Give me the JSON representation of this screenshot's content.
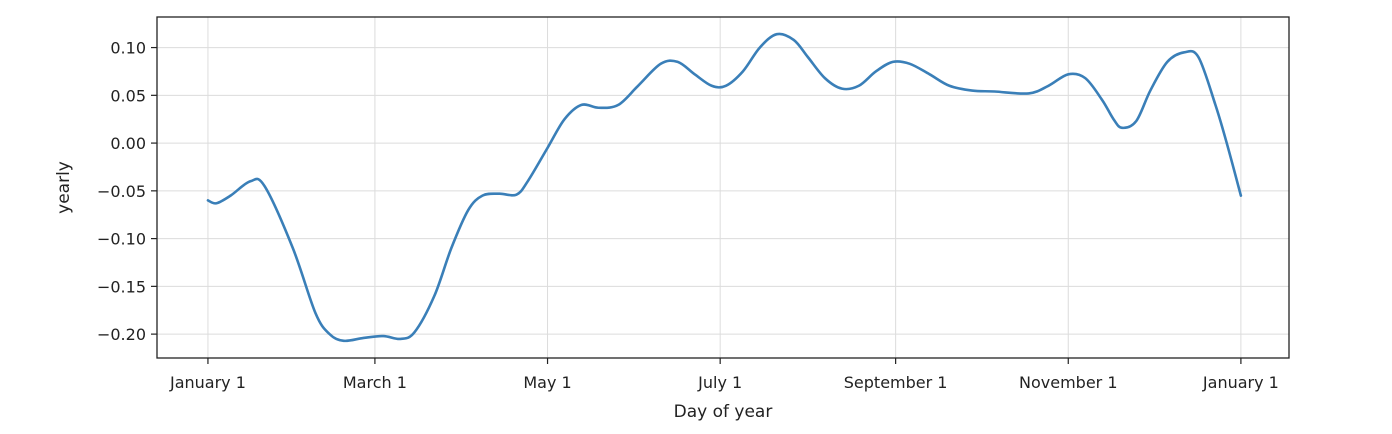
{
  "chart_data": {
    "type": "line",
    "title": "",
    "xlabel": "Day of year",
    "ylabel": "yearly",
    "x_ticks": [
      {
        "day": 0,
        "label": "January 1"
      },
      {
        "day": 59,
        "label": "March 1"
      },
      {
        "day": 120,
        "label": "May 1"
      },
      {
        "day": 181,
        "label": "July 1"
      },
      {
        "day": 243,
        "label": "September 1"
      },
      {
        "day": 304,
        "label": "November 1"
      },
      {
        "day": 365,
        "label": "January 1"
      }
    ],
    "y_ticks": [
      {
        "value": 0.1,
        "label": "0.10"
      },
      {
        "value": 0.05,
        "label": "0.05"
      },
      {
        "value": 0.0,
        "label": "0.00"
      },
      {
        "value": -0.05,
        "label": "−0.05"
      },
      {
        "value": -0.1,
        "label": "−0.10"
      },
      {
        "value": -0.15,
        "label": "−0.15"
      },
      {
        "value": -0.2,
        "label": "−0.20"
      }
    ],
    "xlim": [
      -18,
      382
    ],
    "ylim": [
      -0.225,
      0.132
    ],
    "grid": true,
    "color": "#3a7fb8",
    "series": [
      {
        "x": [
          0,
          3,
          8,
          15,
          20,
          30,
          38,
          43,
          48,
          55,
          62,
          68,
          73,
          80,
          86,
          92,
          97,
          103,
          109,
          113,
          120,
          126,
          132,
          138,
          145,
          152,
          160,
          166,
          172,
          178,
          183,
          189,
          195,
          201,
          207,
          212,
          218,
          224,
          230,
          236,
          242,
          248,
          255,
          262,
          270,
          278,
          290,
          297,
          304,
          310,
          316,
          320,
          323,
          328,
          333,
          339,
          345,
          350,
          356,
          360,
          365
        ],
        "y": [
          -0.06,
          -0.063,
          -0.055,
          -0.04,
          -0.045,
          -0.11,
          -0.178,
          -0.2,
          -0.207,
          -0.204,
          -0.202,
          -0.205,
          -0.198,
          -0.16,
          -0.11,
          -0.07,
          -0.055,
          -0.053,
          -0.054,
          -0.04,
          -0.005,
          0.025,
          0.04,
          0.037,
          0.04,
          0.06,
          0.083,
          0.085,
          0.072,
          0.06,
          0.06,
          0.075,
          0.1,
          0.114,
          0.108,
          0.09,
          0.068,
          0.057,
          0.06,
          0.075,
          0.085,
          0.083,
          0.072,
          0.06,
          0.055,
          0.054,
          0.052,
          0.06,
          0.072,
          0.068,
          0.045,
          0.025,
          0.016,
          0.023,
          0.055,
          0.085,
          0.095,
          0.09,
          0.04,
          0.0,
          -0.055
        ]
      }
    ]
  }
}
